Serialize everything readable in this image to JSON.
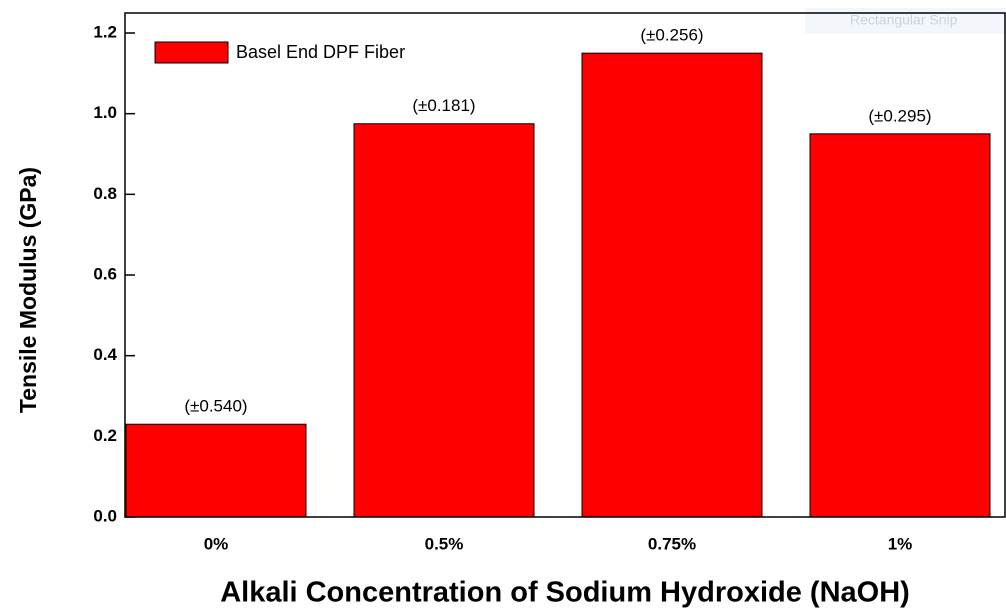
{
  "chart_data": {
    "type": "bar",
    "x_label": "Alkali Concentration of Sodium Hydroxide (NaOH)",
    "y_label": "Tensile Modulus (GPa)",
    "categories": [
      "0%",
      "0.5%",
      "0.75%",
      "1%"
    ],
    "series": [
      {
        "name": "Basel End DPF Fiber",
        "color": "#ff0000",
        "values": [
          0.23,
          0.975,
          1.15,
          0.95
        ]
      }
    ],
    "annotations": [
      "(±0.540)",
      "(±0.181)",
      "(±0.256)",
      "(±0.295)"
    ],
    "ylim": [
      0,
      1.2
    ],
    "yticks": [
      {
        "value": 0,
        "label": "0.0"
      },
      0.2,
      0.4,
      0.6,
      0.8,
      {
        "value": 1,
        "label": "1.0"
      },
      1.2
    ],
    "legend": "upper left",
    "grid": false
  },
  "overlay_text": "Rectangular Snip"
}
